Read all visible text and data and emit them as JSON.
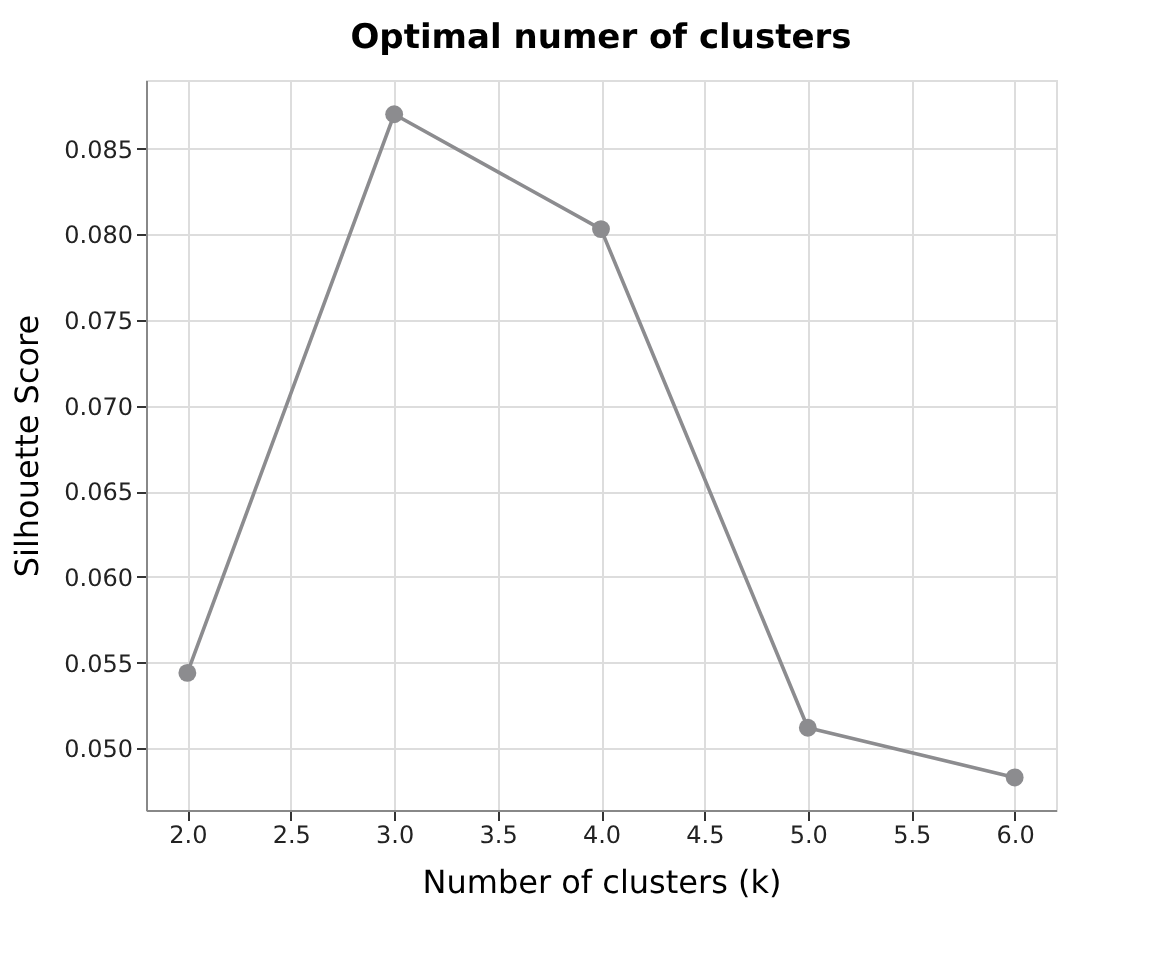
{
  "chart_data": {
    "type": "line",
    "title": "Optimal numer of clusters",
    "xlabel": "Number of clusters (k)",
    "ylabel": "Silhouette Score",
    "x": [
      2.0,
      3.0,
      4.0,
      5.0,
      6.0
    ],
    "series": [
      {
        "color": "#8c8c8f",
        "values": [
          0.0544,
          0.087,
          0.0803,
          0.0512,
          0.0483
        ]
      }
    ],
    "xlim": [
      1.8,
      6.2
    ],
    "xticks": [
      {
        "value": 2.0,
        "label": "2.0"
      },
      {
        "value": 2.5,
        "label": "2.5"
      },
      {
        "value": 3.0,
        "label": "3.0"
      },
      {
        "value": 3.5,
        "label": "3.5"
      },
      {
        "value": 4.0,
        "label": "4.0"
      },
      {
        "value": 4.5,
        "label": "4.5"
      },
      {
        "value": 5.0,
        "label": "5.0"
      },
      {
        "value": 5.5,
        "label": "5.5"
      },
      {
        "value": 6.0,
        "label": "6.0"
      }
    ],
    "ylim": [
      0.0464,
      0.089
    ],
    "yticks": [
      {
        "value": 0.05,
        "label": "0.050"
      },
      {
        "value": 0.055,
        "label": "0.055"
      },
      {
        "value": 0.06,
        "label": "0.060"
      },
      {
        "value": 0.065,
        "label": "0.065"
      },
      {
        "value": 0.07,
        "label": "0.070"
      },
      {
        "value": 0.075,
        "label": "0.075"
      },
      {
        "value": 0.08,
        "label": "0.080"
      },
      {
        "value": 0.085,
        "label": "0.085"
      }
    ],
    "grid": true,
    "marker": "circle",
    "line_style": "solid"
  }
}
